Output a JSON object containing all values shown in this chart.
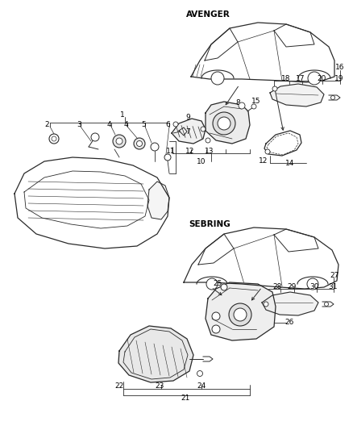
{
  "background_color": "#ffffff",
  "line_color": "#2a2a2a",
  "text_color": "#000000",
  "figsize": [
    4.39,
    5.33
  ],
  "dpi": 100,
  "avenger_label": "AVENGER",
  "sebring_label": "SEBRING",
  "font_size_label": 6.5,
  "font_size_section": 7.5
}
